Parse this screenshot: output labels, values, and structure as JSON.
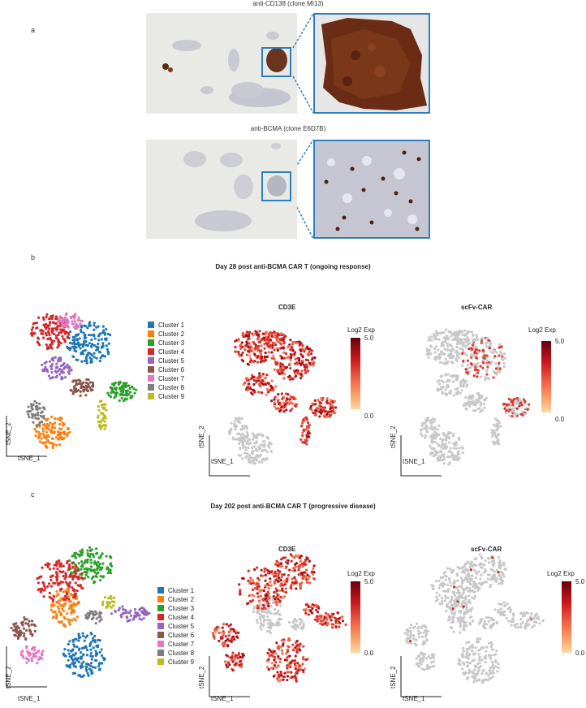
{
  "panel_a": {
    "label": "a",
    "stain1": {
      "title": "anti-CD138 (clone MI13)"
    },
    "stain2": {
      "title": "anti-BCMA (clone E6D7B)"
    }
  },
  "panel_b": {
    "label": "b",
    "title": "Day 28 post anti-BCMA CAR T (ongoing response)",
    "plot_titles": {
      "cd3e": "CD3E",
      "scfv": "scFv-CAR"
    }
  },
  "panel_c": {
    "label": "c",
    "title": "Day 202 post anti-BCMA CAR T (progressive disease)",
    "plot_titles": {
      "cd3e": "CD3E",
      "scfv": "scFv-CAR"
    }
  },
  "clusters": [
    {
      "name": "Cluster 1",
      "color": "#1f77b4"
    },
    {
      "name": "Cluster 2",
      "color": "#ff7f0e"
    },
    {
      "name": "Cluster 3",
      "color": "#2ca02c"
    },
    {
      "name": "Cluster 4",
      "color": "#d62728"
    },
    {
      "name": "Cluster 5",
      "color": "#9467bd"
    },
    {
      "name": "Cluster 6",
      "color": "#8c564b"
    },
    {
      "name": "Cluster 7",
      "color": "#e377c2"
    },
    {
      "name": "Cluster 8",
      "color": "#7f7f7f"
    },
    {
      "name": "Cluster 9",
      "color": "#bcbd22"
    }
  ],
  "axes": {
    "x": "tSNE_1",
    "y": "tSNE_2"
  },
  "colorbar": {
    "title": "Log2 Exp",
    "max": "5.0",
    "min": "0.0"
  }
}
